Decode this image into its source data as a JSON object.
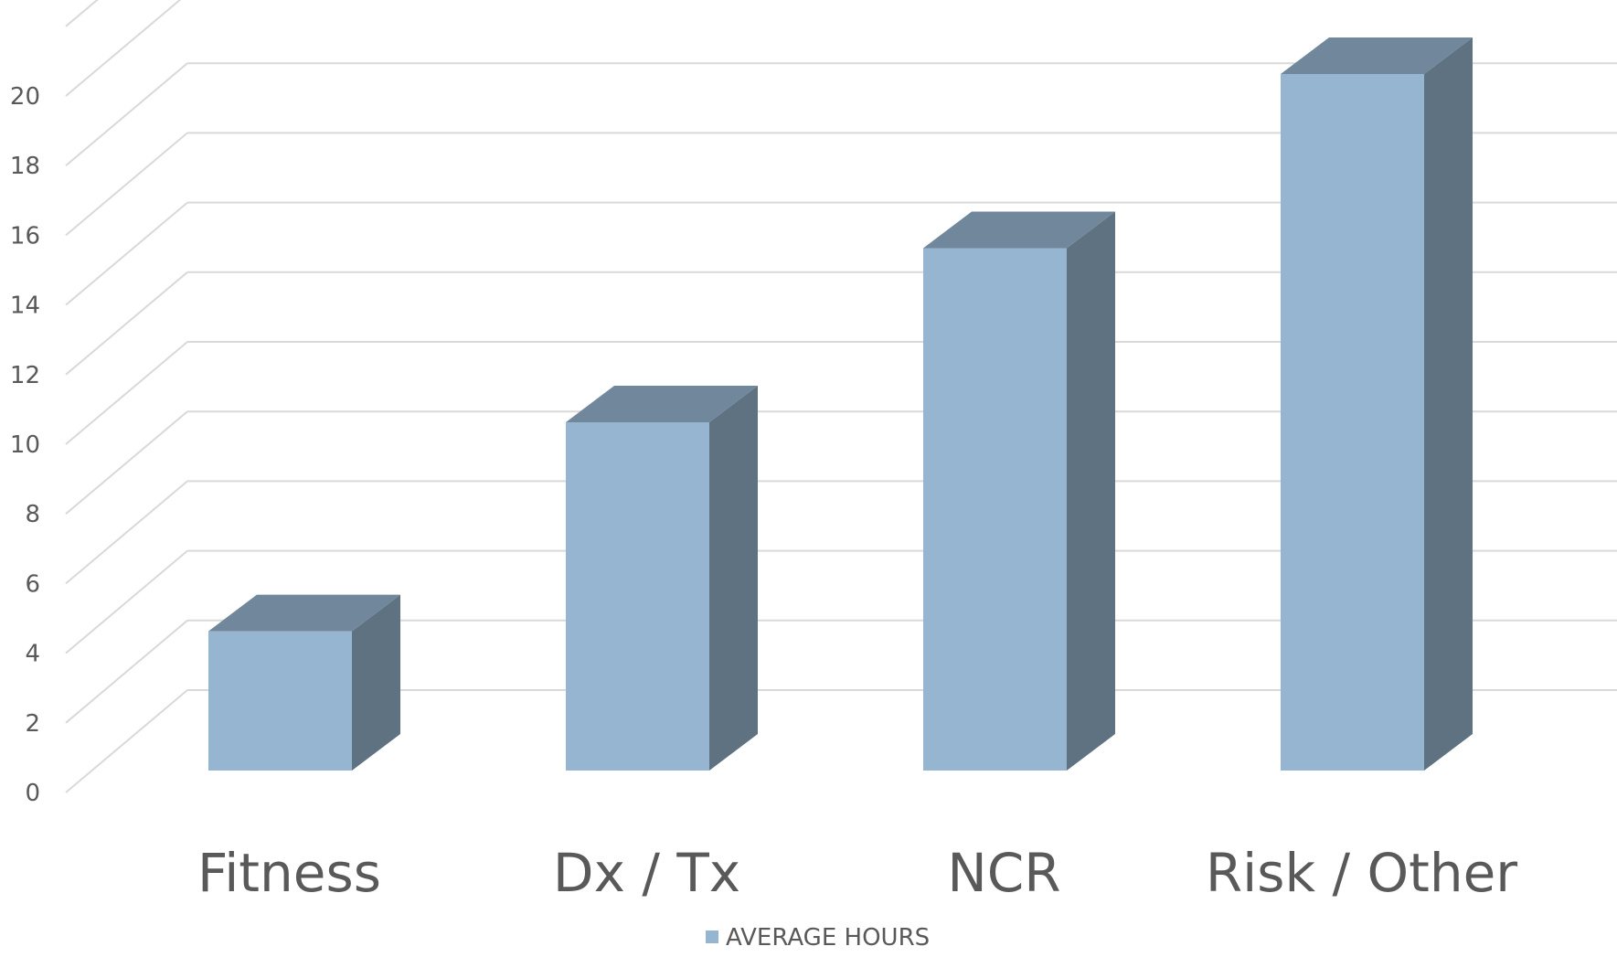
{
  "chart_data": {
    "type": "bar",
    "categories": [
      "Fitness",
      "Dx / Tx",
      "NCR",
      "Risk / Other"
    ],
    "series": [
      {
        "name": "AVERAGE HOURS",
        "values": [
          4,
          10,
          15,
          20
        ]
      }
    ],
    "y_ticks": [
      "0",
      "2",
      "4",
      "6",
      "8",
      "10",
      "12",
      "14",
      "16",
      "18",
      "20"
    ],
    "ylim": [
      0,
      22
    ],
    "grid": true,
    "three_d": true,
    "legend_position": "bottom"
  },
  "colors": {
    "bar_front": "#95b5d1",
    "bar_top": "#71879c",
    "bar_side": "#5e7282",
    "grid": "#d9d9d9",
    "text": "#595959"
  }
}
